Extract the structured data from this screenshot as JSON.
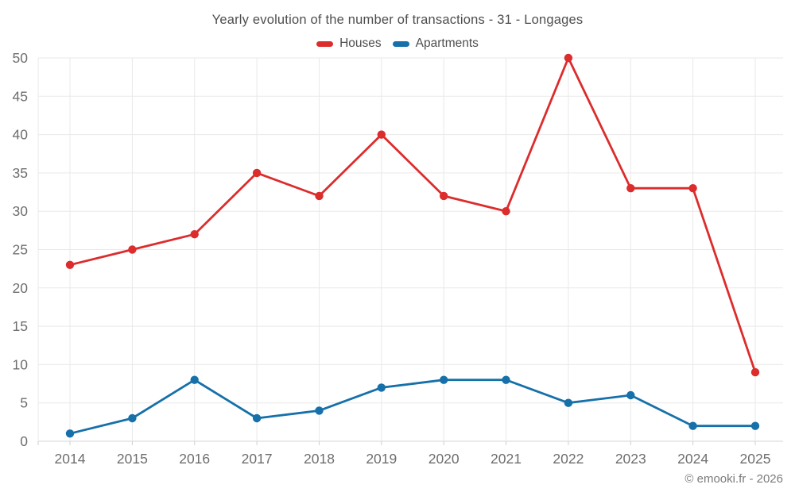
{
  "page": {
    "copyright": "© emooki.fr - 2026"
  },
  "chart_data": {
    "type": "line",
    "title": "Yearly evolution of the number of transactions - 31 - Longages",
    "categories": [
      "2014",
      "2015",
      "2016",
      "2017",
      "2018",
      "2019",
      "2020",
      "2021",
      "2022",
      "2023",
      "2024",
      "2025"
    ],
    "series": [
      {
        "name": "Houses",
        "color": "#dc2c2c",
        "values": [
          23,
          25,
          27,
          35,
          32,
          40,
          32,
          30,
          50,
          33,
          33,
          9
        ]
      },
      {
        "name": "Apartments",
        "color": "#1670a9",
        "values": [
          1,
          3,
          8,
          3,
          4,
          7,
          8,
          8,
          5,
          6,
          2,
          2
        ]
      }
    ],
    "xlabel": "",
    "ylabel": "",
    "ylim": [
      0,
      50
    ],
    "y_ticks": [
      0,
      5,
      10,
      15,
      20,
      25,
      30,
      35,
      40,
      45,
      50
    ],
    "grid": true,
    "legend_position": "top",
    "marker": "circle"
  },
  "colors": {
    "grid": "#e9e9e9",
    "axis_line": "#d6d6d6",
    "tick_mark": "#cfcfcf",
    "tick_text": "#6e6e6e",
    "title_text": "#4e4e4e",
    "copyright_text": "#7b7b7b"
  }
}
